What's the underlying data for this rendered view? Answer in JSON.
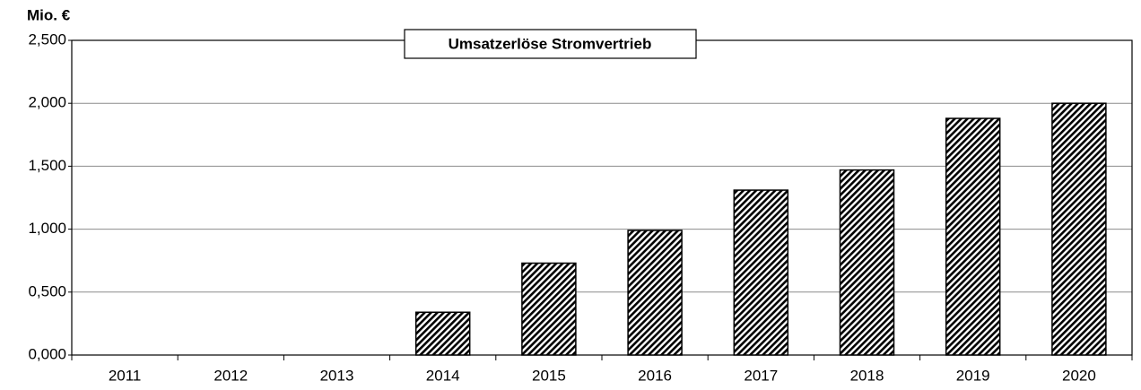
{
  "chart_data": {
    "type": "bar",
    "title": "Umsatzerlöse Stromvertrieb",
    "y_label": "Mio. €",
    "categories": [
      "2011",
      "2012",
      "2013",
      "2014",
      "2015",
      "2016",
      "2017",
      "2018",
      "2019",
      "2020"
    ],
    "values": [
      0,
      0,
      0,
      0.34,
      0.73,
      0.99,
      1.31,
      1.47,
      1.88,
      2.0
    ],
    "color": "#000000",
    "ylim": [
      0,
      2.5
    ],
    "yticks": [
      {
        "value": 0,
        "label": "0,000"
      },
      {
        "value": 0.5,
        "label": "0,500"
      },
      {
        "value": 1,
        "label": "1,000"
      },
      {
        "value": 1.5,
        "label": "1,500"
      },
      {
        "value": 2,
        "label": "2,000"
      },
      {
        "value": 2.5,
        "label": "2,500"
      }
    ],
    "grid": true
  }
}
